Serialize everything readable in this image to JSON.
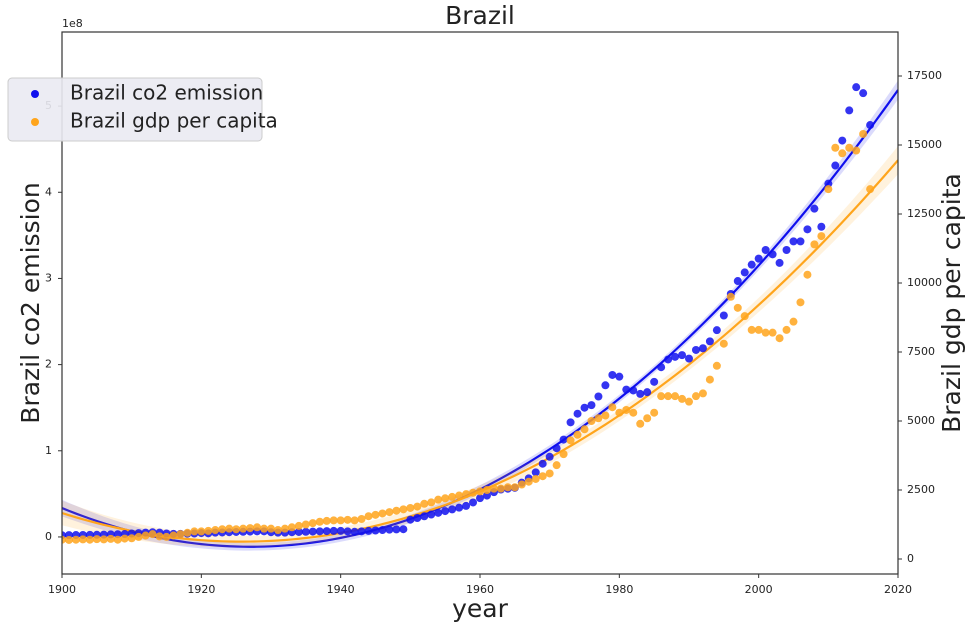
{
  "chart_data": {
    "type": "scatter-regression",
    "title": "Brazil",
    "x_label": "year",
    "y_label": "Brazil co2 emission",
    "y2_label": "Brazil gdp per capita",
    "y_offset_label": "1e8",
    "legend_position": "upper-left",
    "xlim": [
      1900,
      2020
    ],
    "xticks": [
      1900,
      1920,
      1940,
      1960,
      1980,
      2000,
      2020
    ],
    "ylim": [
      -43000000,
      586000000
    ],
    "yticks": [
      {
        "value": 0,
        "label": "0"
      },
      {
        "value": 100000000,
        "label": "1"
      },
      {
        "value": 200000000,
        "label": "2"
      },
      {
        "value": 300000000,
        "label": "3"
      },
      {
        "value": 400000000,
        "label": "4"
      },
      {
        "value": 500000000,
        "label": "5"
      }
    ],
    "y2lim": [
      -543,
      19094
    ],
    "y2ticks": [
      0,
      2500,
      5000,
      7500,
      10000,
      12500,
      15000,
      17500
    ],
    "x": [
      1900,
      1901,
      1902,
      1903,
      1904,
      1905,
      1906,
      1907,
      1908,
      1909,
      1910,
      1911,
      1912,
      1913,
      1914,
      1915,
      1916,
      1917,
      1918,
      1919,
      1920,
      1921,
      1922,
      1923,
      1924,
      1925,
      1926,
      1927,
      1928,
      1929,
      1930,
      1931,
      1932,
      1933,
      1934,
      1935,
      1936,
      1937,
      1938,
      1939,
      1940,
      1941,
      1942,
      1943,
      1944,
      1945,
      1946,
      1947,
      1948,
      1949,
      1950,
      1951,
      1952,
      1953,
      1954,
      1955,
      1956,
      1957,
      1958,
      1959,
      1960,
      1961,
      1962,
      1963,
      1964,
      1965,
      1966,
      1967,
      1968,
      1969,
      1970,
      1971,
      1972,
      1973,
      1974,
      1975,
      1976,
      1977,
      1978,
      1979,
      1980,
      1981,
      1982,
      1983,
      1984,
      1985,
      1986,
      1987,
      1988,
      1989,
      1990,
      1991,
      1992,
      1993,
      1994,
      1995,
      1996,
      1997,
      1998,
      1999,
      2000,
      2001,
      2002,
      2003,
      2004,
      2005,
      2006,
      2007,
      2008,
      2009,
      2010,
      2011,
      2012,
      2013,
      2014,
      2015,
      2016
    ],
    "series": [
      {
        "name": "Brazil co2 emission",
        "color": "#1010ee",
        "axis": "y",
        "values": [
          2000000,
          2100000,
          2200000,
          2300000,
          2400000,
          2500000,
          2700000,
          3000000,
          3200000,
          3400000,
          4000000,
          4500000,
          5000000,
          5500000,
          5000000,
          4000000,
          3500000,
          3500000,
          3800000,
          4000000,
          4500000,
          4200000,
          5000000,
          5200000,
          5500000,
          5800000,
          6000000,
          6200000,
          6500000,
          6500000,
          5500000,
          5000000,
          5000000,
          5500000,
          5800000,
          6000000,
          6200000,
          6500000,
          6800000,
          7000000,
          7000000,
          6500000,
          6000000,
          6500000,
          7000000,
          7500000,
          8000000,
          8500000,
          8800000,
          9000000,
          20000000,
          22000000,
          24000000,
          26000000,
          28000000,
          30000000,
          32000000,
          34000000,
          36000000,
          40000000,
          45000000,
          48000000,
          52000000,
          55000000,
          56000000,
          57000000,
          63000000,
          68000000,
          75000000,
          85000000,
          93000000,
          103000000,
          113000000,
          133000000,
          143000000,
          150000000,
          153000000,
          163000000,
          176000000,
          188000000,
          186000000,
          171000000,
          170000000,
          166000000,
          168000000,
          180000000,
          197000000,
          206000000,
          209000000,
          211000000,
          207000000,
          217000000,
          219000000,
          227000000,
          240000000,
          257000000,
          282000000,
          297000000,
          307000000,
          316000000,
          323000000,
          333000000,
          328000000,
          318000000,
          333000000,
          343000000,
          343000000,
          357000000,
          381000000,
          360000000,
          410000000,
          431000000,
          460000000,
          495000000,
          522000000,
          515000000,
          478000000
        ]
      },
      {
        "name": "Brazil gdp per capita",
        "color": "#ffa51c",
        "axis": "y2",
        "values": [
          700,
          690,
          700,
          710,
          700,
          720,
          710,
          730,
          700,
          740,
          750,
          800,
          850,
          900,
          820,
          800,
          850,
          900,
          950,
          1000,
          1000,
          1020,
          1050,
          1080,
          1100,
          1080,
          1100,
          1120,
          1150,
          1100,
          1100,
          1050,
          1100,
          1150,
          1200,
          1250,
          1300,
          1350,
          1380,
          1400,
          1400,
          1420,
          1400,
          1450,
          1550,
          1600,
          1650,
          1700,
          1750,
          1800,
          1850,
          1900,
          2000,
          2050,
          2150,
          2200,
          2250,
          2300,
          2350,
          2400,
          2450,
          2500,
          2550,
          2550,
          2600,
          2600,
          2700,
          2800,
          2900,
          3000,
          3100,
          3400,
          3800,
          4300,
          4500,
          4700,
          5000,
          5100,
          5200,
          5500,
          5300,
          5400,
          5300,
          4900,
          5100,
          5300,
          5900,
          5900,
          5900,
          5800,
          5700,
          5900,
          6000,
          6500,
          7000,
          7800,
          9500,
          9100,
          8800,
          8300,
          8300,
          8200,
          8200,
          8000,
          8300,
          8600,
          9300,
          10300,
          11400,
          11700,
          13400,
          14900,
          14700,
          14900,
          14800,
          15400,
          13400
        ]
      }
    ]
  }
}
